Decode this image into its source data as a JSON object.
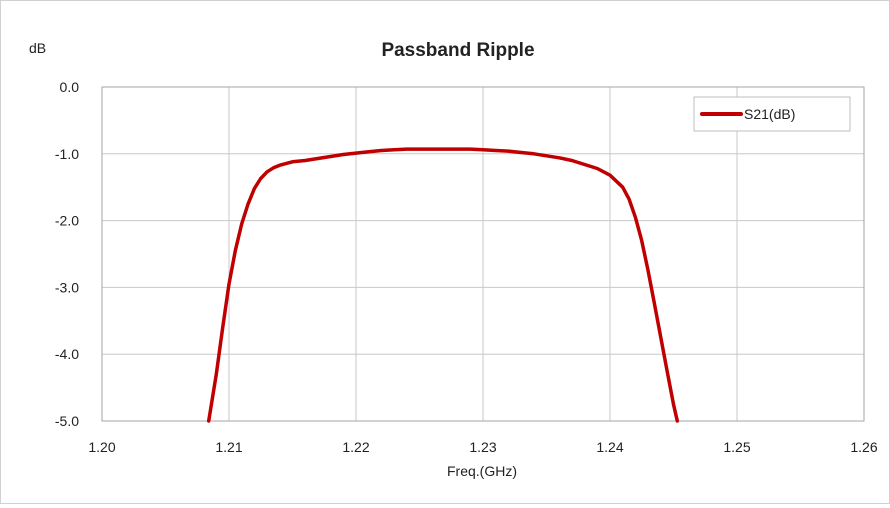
{
  "chart_data": {
    "type": "line",
    "title": "Passband Ripple",
    "xlabel": "Freq.(GHz)",
    "ylabel": "dB",
    "xlim": [
      1.2,
      1.26
    ],
    "ylim": [
      -5.0,
      0.0
    ],
    "x_ticks": [
      "1.20",
      "1.21",
      "1.22",
      "1.23",
      "1.24",
      "1.25",
      "1.26"
    ],
    "y_ticks": [
      "0.0",
      "-1.0",
      "-2.0",
      "-3.0",
      "-4.0",
      "-5.0"
    ],
    "grid": true,
    "legend_position": "top-right",
    "series": [
      {
        "name": "S21(dB)",
        "color": "#c00000",
        "x": [
          1.2084,
          1.209,
          1.2095,
          1.21,
          1.2105,
          1.211,
          1.2115,
          1.212,
          1.2125,
          1.213,
          1.2135,
          1.214,
          1.215,
          1.216,
          1.217,
          1.218,
          1.219,
          1.22,
          1.221,
          1.222,
          1.223,
          1.224,
          1.225,
          1.226,
          1.227,
          1.228,
          1.229,
          1.23,
          1.231,
          1.232,
          1.233,
          1.234,
          1.235,
          1.236,
          1.237,
          1.238,
          1.239,
          1.24,
          1.241,
          1.2415,
          1.242,
          1.2425,
          1.243,
          1.2435,
          1.244,
          1.2445,
          1.245,
          1.2453
        ],
        "y": [
          -5.0,
          -4.3,
          -3.6,
          -2.95,
          -2.45,
          -2.05,
          -1.75,
          -1.52,
          -1.37,
          -1.27,
          -1.21,
          -1.17,
          -1.12,
          -1.1,
          -1.07,
          -1.04,
          -1.01,
          -0.99,
          -0.97,
          -0.95,
          -0.94,
          -0.93,
          -0.93,
          -0.93,
          -0.93,
          -0.93,
          -0.93,
          -0.94,
          -0.95,
          -0.96,
          -0.98,
          -1.0,
          -1.03,
          -1.06,
          -1.1,
          -1.16,
          -1.22,
          -1.32,
          -1.5,
          -1.68,
          -1.95,
          -2.3,
          -2.75,
          -3.25,
          -3.75,
          -4.25,
          -4.75,
          -5.0
        ]
      }
    ]
  }
}
